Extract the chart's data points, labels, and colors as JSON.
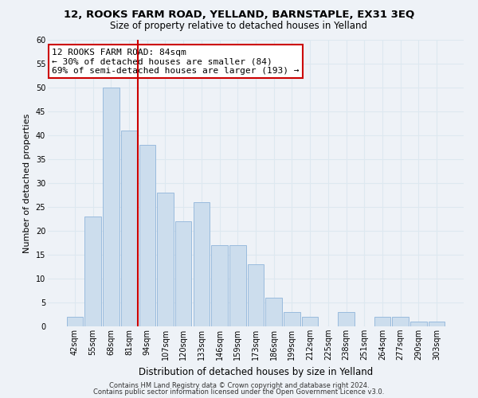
{
  "title": "12, ROOKS FARM ROAD, YELLAND, BARNSTAPLE, EX31 3EQ",
  "subtitle": "Size of property relative to detached houses in Yelland",
  "xlabel": "Distribution of detached houses by size in Yelland",
  "ylabel": "Number of detached properties",
  "bar_labels": [
    "42sqm",
    "55sqm",
    "68sqm",
    "81sqm",
    "94sqm",
    "107sqm",
    "120sqm",
    "133sqm",
    "146sqm",
    "159sqm",
    "173sqm",
    "186sqm",
    "199sqm",
    "212sqm",
    "225sqm",
    "238sqm",
    "251sqm",
    "264sqm",
    "277sqm",
    "290sqm",
    "303sqm"
  ],
  "bar_values": [
    2,
    23,
    50,
    41,
    38,
    28,
    22,
    26,
    17,
    17,
    13,
    6,
    3,
    2,
    0,
    3,
    0,
    2,
    2,
    1,
    1
  ],
  "bar_color": "#ccdded",
  "bar_edge_color": "#99bbdd",
  "vline_x_index": 3,
  "vline_color": "#cc0000",
  "ylim": [
    0,
    60
  ],
  "yticks": [
    0,
    5,
    10,
    15,
    20,
    25,
    30,
    35,
    40,
    45,
    50,
    55,
    60
  ],
  "annotation_title": "12 ROOKS FARM ROAD: 84sqm",
  "annotation_line1": "← 30% of detached houses are smaller (84)",
  "annotation_line2": "69% of semi-detached houses are larger (193) →",
  "annotation_box_color": "#ffffff",
  "annotation_box_edge": "#cc0000",
  "footer1": "Contains HM Land Registry data © Crown copyright and database right 2024.",
  "footer2": "Contains public sector information licensed under the Open Government Licence v3.0.",
  "grid_color": "#dde8f0",
  "background_color": "#eef2f7",
  "title_fontsize": 9.5,
  "subtitle_fontsize": 8.5,
  "xlabel_fontsize": 8.5,
  "ylabel_fontsize": 8,
  "tick_fontsize": 7,
  "annotation_fontsize": 8,
  "footer_fontsize": 6
}
